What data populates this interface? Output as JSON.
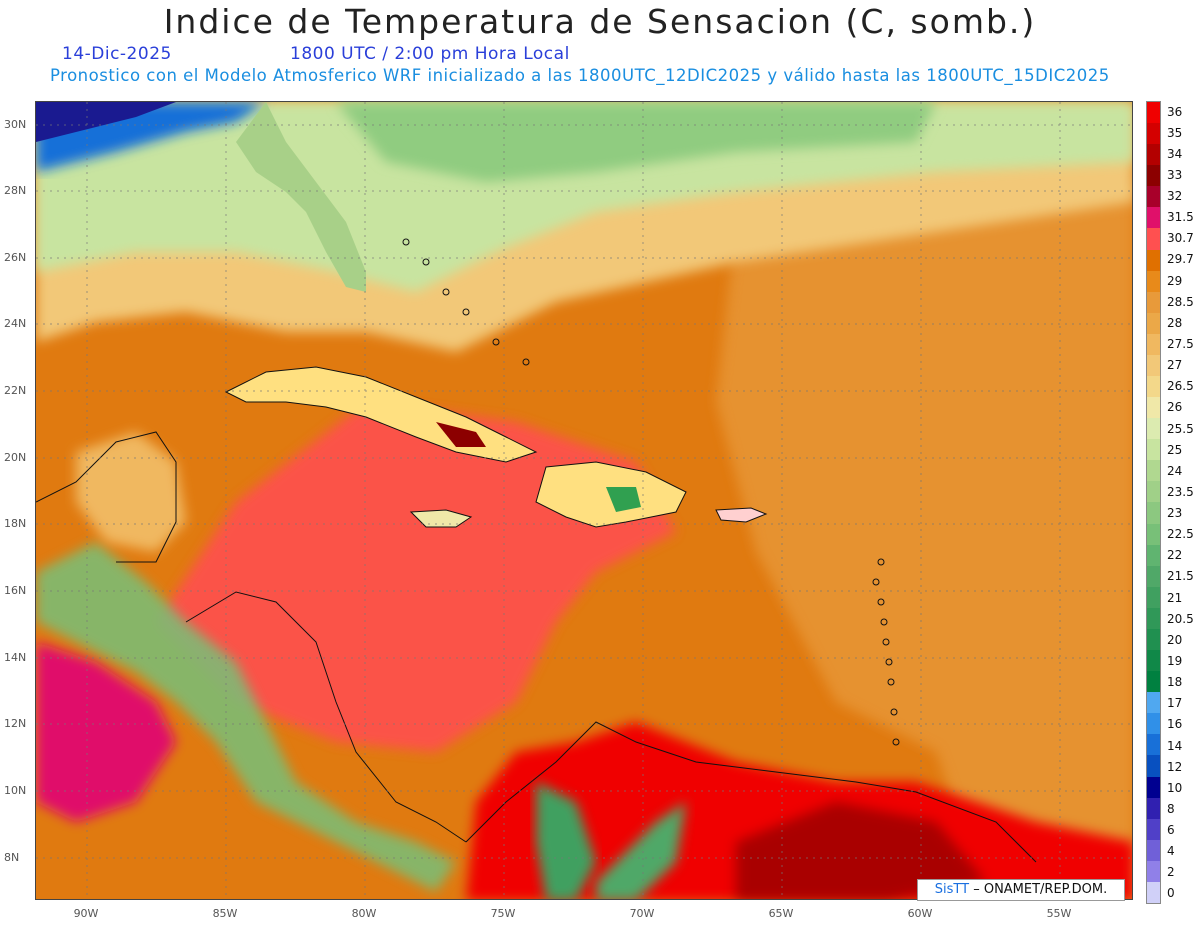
{
  "header": {
    "title": "Indice de Temperatura de Sensacion (C, somb.)",
    "date": "14-Dic-2025",
    "time": "1800 UTC / 2:00 pm Hora Local",
    "model_info": "Pronostico con el Modelo Atmosferico WRF inicializado a las 1800UTC_12DIC2025 y válido hasta las  1800UTC_15DIC2025"
  },
  "map": {
    "lat_labels": [
      "30N",
      "28N",
      "26N",
      "24N",
      "22N",
      "20N",
      "18N",
      "16N",
      "14N",
      "12N",
      "10N",
      "8N"
    ],
    "lon_labels": [
      "90W",
      "85W",
      "80W",
      "75W",
      "70W",
      "65W",
      "60W",
      "55W"
    ],
    "credit_brand": "SisTT",
    "credit_text": "– ONAMET/REP.DOM."
  },
  "legend": {
    "labels": [
      "36",
      "35",
      "34",
      "33",
      "32",
      "31.5",
      "30.7",
      "29.7",
      "29",
      "28.5",
      "28",
      "27.5",
      "27",
      "26.5",
      "26",
      "25.5",
      "25",
      "24",
      "23.5",
      "23",
      "22.5",
      "22",
      "21.5",
      "21",
      "20.5",
      "20",
      "19",
      "18",
      "17",
      "16",
      "14",
      "12",
      "10",
      "8",
      "6",
      "4",
      "2",
      "0"
    ],
    "colors": [
      "#f00000",
      "#d40000",
      "#b30000",
      "#8c0000",
      "#a8002a",
      "#e0106a",
      "#ff5050",
      "#e07000",
      "#e88a1a",
      "#e89a3a",
      "#eba848",
      "#f0b860",
      "#f2c878",
      "#f3d88a",
      "#f0e8a8",
      "#dcebb0",
      "#c8e4a0",
      "#b0d890",
      "#a0d088",
      "#8cc880",
      "#78c078",
      "#60b470",
      "#50a868",
      "#40a060",
      "#309858",
      "#209050",
      "#108848",
      "#008040",
      "#50a8f0",
      "#3090e8",
      "#1870d8",
      "#0850c0",
      "#000090",
      "#3020b0",
      "#5040c8",
      "#7060d8",
      "#9080e8",
      "#d0d0f8"
    ]
  }
}
